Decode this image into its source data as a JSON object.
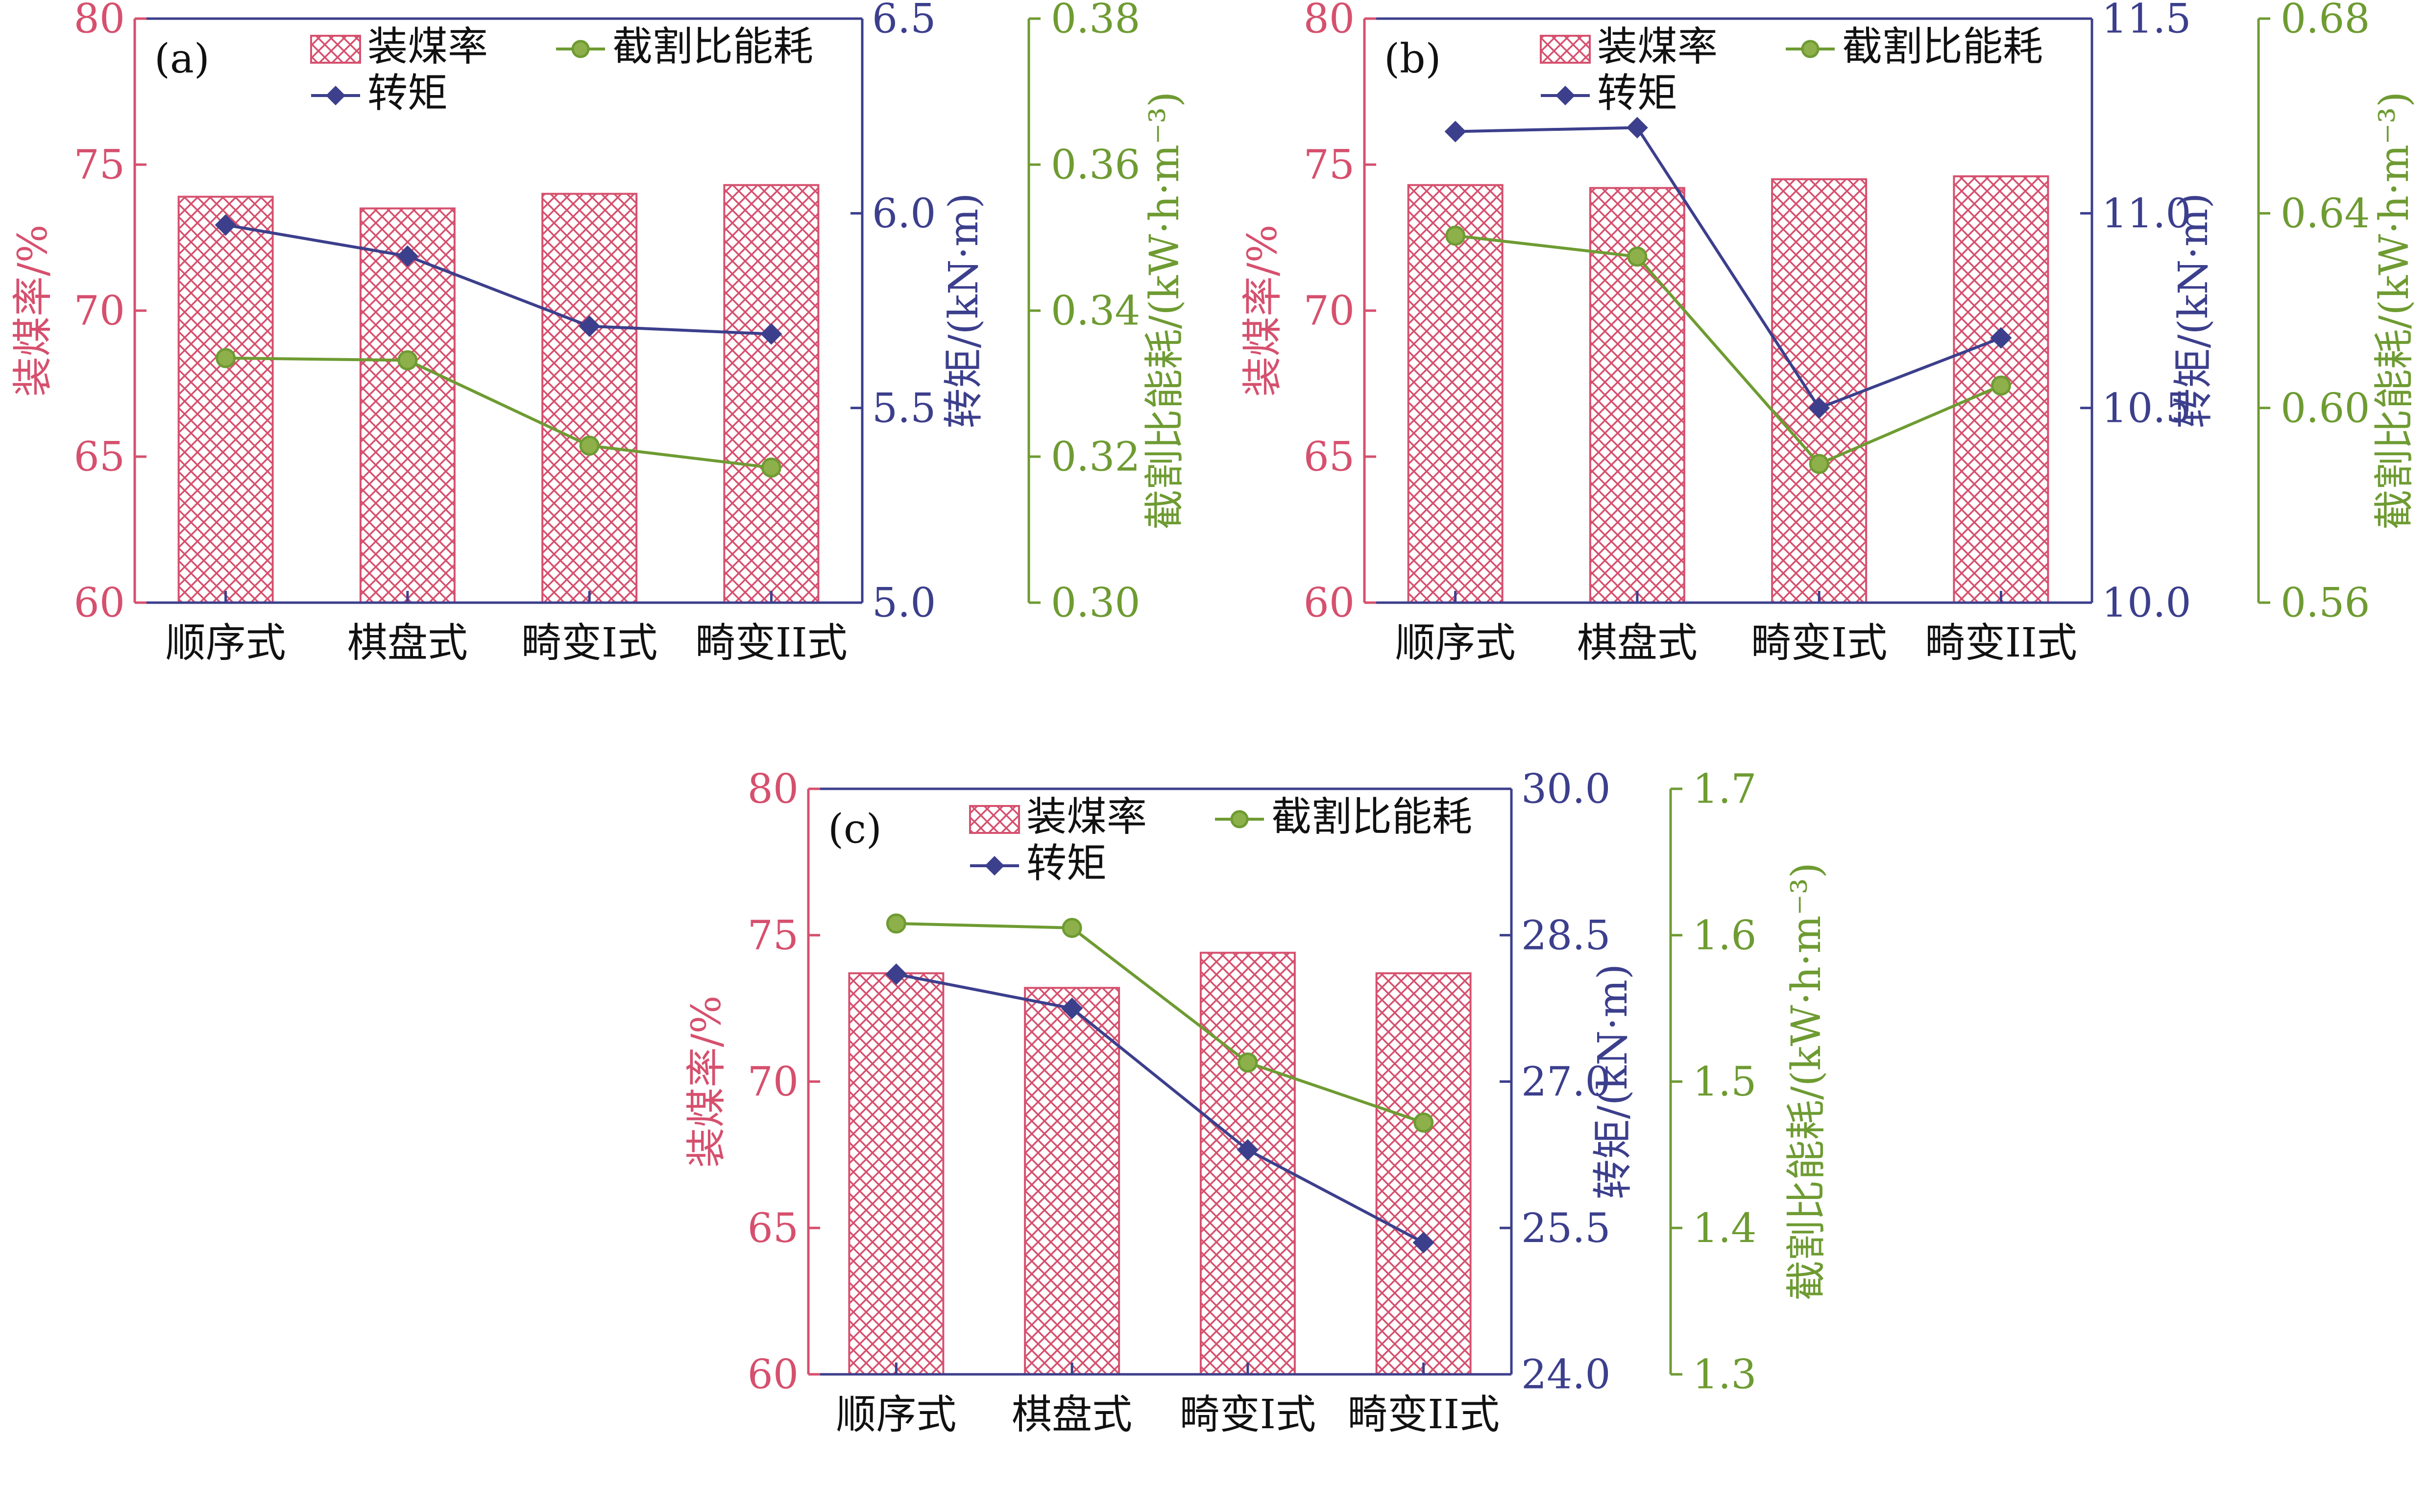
{
  "colors": {
    "loading": "#D6506E",
    "torque": "#3C3F8C",
    "energy": "#6E9B32",
    "frame": "#3C3F8C",
    "text": "#111111"
  },
  "chart_data": [
    {
      "type": "bar",
      "panel_label": "(a)",
      "categories": [
        "顺序式",
        "棋盘式",
        "畸变I式",
        "畸变II式"
      ],
      "legend": {
        "loading": "装煤率",
        "energy": "截割比能耗",
        "torque": "转矩"
      },
      "axes": {
        "left": {
          "label": "装煤率/%",
          "ylim": [
            60,
            80
          ],
          "ticks": [
            60,
            65,
            70,
            75,
            80
          ],
          "tick_labels": [
            "60",
            "65",
            "70",
            "75",
            "80"
          ]
        },
        "right1": {
          "label": "转矩/(kN·m)",
          "ylim": [
            5.0,
            6.5
          ],
          "ticks": [
            5.0,
            5.5,
            6.0,
            6.5
          ],
          "tick_labels": [
            "5.0",
            "5.5",
            "6.0",
            "6.5"
          ]
        },
        "right2": {
          "label": "截割比能耗/(kW·h·m⁻³)",
          "ylim": [
            0.3,
            0.38
          ],
          "ticks": [
            0.3,
            0.32,
            0.34,
            0.36,
            0.38
          ],
          "tick_labels": [
            "0.30",
            "0.32",
            "0.34",
            "0.36",
            "0.38"
          ]
        }
      },
      "series": [
        {
          "name": "装煤率",
          "kind": "bar",
          "axis": "left",
          "values": [
            73.9,
            73.5,
            74.0,
            74.3
          ]
        },
        {
          "name": "转矩",
          "kind": "line",
          "axis": "right1",
          "values": [
            5.97,
            5.89,
            5.71,
            5.69
          ]
        },
        {
          "name": "截割比能耗",
          "kind": "line",
          "axis": "right2",
          "values": [
            0.3335,
            0.3332,
            0.3215,
            0.3185
          ]
        }
      ]
    },
    {
      "type": "bar",
      "panel_label": "(b)",
      "categories": [
        "顺序式",
        "棋盘式",
        "畸变I式",
        "畸变II式"
      ],
      "legend": {
        "loading": "装煤率",
        "energy": "截割比能耗",
        "torque": "转矩"
      },
      "axes": {
        "left": {
          "label": "装煤率/%",
          "ylim": [
            60,
            80
          ],
          "ticks": [
            60,
            65,
            70,
            75,
            80
          ],
          "tick_labels": [
            "60",
            "65",
            "70",
            "75",
            "80"
          ]
        },
        "right1": {
          "label": "转矩/(kN·m)",
          "ylim": [
            10.0,
            11.5
          ],
          "ticks": [
            10.0,
            10.5,
            11.0,
            11.5
          ],
          "tick_labels": [
            "10.0",
            "10.5",
            "11.0",
            "11.5"
          ]
        },
        "right2": {
          "label": "截割比能耗/(kW·h·m⁻³)",
          "ylim": [
            0.56,
            0.68
          ],
          "ticks": [
            0.56,
            0.6,
            0.64,
            0.68
          ],
          "tick_labels": [
            "0.56",
            "0.60",
            "0.64",
            "0.68"
          ]
        }
      },
      "series": [
        {
          "name": "装煤率",
          "kind": "bar",
          "axis": "left",
          "values": [
            74.3,
            74.2,
            74.5,
            74.6
          ]
        },
        {
          "name": "转矩",
          "kind": "line",
          "axis": "right1",
          "values": [
            11.21,
            11.22,
            10.5,
            10.68
          ]
        },
        {
          "name": "截割比能耗",
          "kind": "line",
          "axis": "right2",
          "values": [
            0.6354,
            0.6311,
            0.5885,
            0.6046
          ]
        }
      ]
    },
    {
      "type": "bar",
      "panel_label": "(c)",
      "categories": [
        "顺序式",
        "棋盘式",
        "畸变I式",
        "畸变II式"
      ],
      "legend": {
        "loading": "装煤率",
        "energy": "截割比能耗",
        "torque": "转矩"
      },
      "axes": {
        "left": {
          "label": "装煤率/%",
          "ylim": [
            60,
            80
          ],
          "ticks": [
            60,
            65,
            70,
            75,
            80
          ],
          "tick_labels": [
            "60",
            "65",
            "70",
            "75",
            "80"
          ]
        },
        "right1": {
          "label": "转矩/(kN·m)",
          "ylim": [
            24.0,
            30.0
          ],
          "ticks": [
            24.0,
            25.5,
            27.0,
            28.5,
            30.0
          ],
          "tick_labels": [
            "24.0",
            "25.5",
            "27.0",
            "28.5",
            "30.0"
          ]
        },
        "right2": {
          "label": "截割比能耗/(kW·h·m⁻³)",
          "ylim": [
            1.3,
            1.7
          ],
          "ticks": [
            1.3,
            1.4,
            1.5,
            1.6,
            1.7
          ],
          "tick_labels": [
            "1.3",
            "1.4",
            "1.5",
            "1.6",
            "1.7"
          ]
        }
      },
      "series": [
        {
          "name": "装煤率",
          "kind": "bar",
          "axis": "left",
          "values": [
            73.7,
            73.2,
            74.4,
            73.7
          ]
        },
        {
          "name": "转矩",
          "kind": "line",
          "axis": "right1",
          "values": [
            28.1,
            27.75,
            26.3,
            25.35
          ]
        },
        {
          "name": "截割比能耗",
          "kind": "line",
          "axis": "right2",
          "values": [
            1.608,
            1.605,
            1.513,
            1.472
          ]
        }
      ]
    }
  ]
}
